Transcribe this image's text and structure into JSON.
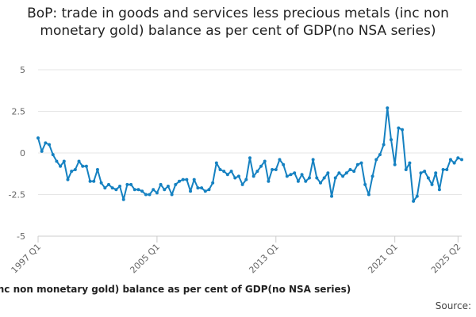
{
  "chart_data": {
    "type": "line",
    "title": "BoP: trade in goods and services less precious metals (inc non monetary gold) balance as per cent of GDP(no NSA series)",
    "xlabel": "BoP: trade in goods and services less precious metals (inc non monetary gold) balance as per cent of GDP(no NSA series)",
    "ylabel": "",
    "source_label": "Source:",
    "ylim": [
      -5,
      5
    ],
    "yticks": [
      5,
      2.5,
      0,
      -2.5,
      -5
    ],
    "ytick_labels": [
      "5",
      "2.5",
      "0",
      "-2.5",
      "-5"
    ],
    "xtick_labels": [
      "1997 Q1",
      "2005 Q1",
      "2013 Q1",
      "2021 Q1",
      "2025 Q2"
    ],
    "xtick_index": [
      0,
      32,
      64,
      96,
      113
    ],
    "grid": true,
    "series": [
      {
        "name": "Balance as per cent of GDP",
        "color": "#1581c1",
        "start": "1997 Q1",
        "values": [
          0.9,
          0.1,
          0.6,
          0.5,
          -0.1,
          -0.5,
          -0.8,
          -0.5,
          -1.6,
          -1.1,
          -1.0,
          -0.5,
          -0.8,
          -0.8,
          -1.7,
          -1.7,
          -1.0,
          -1.8,
          -2.1,
          -1.9,
          -2.1,
          -2.2,
          -2.0,
          -2.8,
          -1.9,
          -1.9,
          -2.2,
          -2.2,
          -2.3,
          -2.5,
          -2.5,
          -2.2,
          -2.4,
          -1.9,
          -2.2,
          -2.0,
          -2.5,
          -1.9,
          -1.7,
          -1.6,
          -1.6,
          -2.3,
          -1.6,
          -2.1,
          -2.1,
          -2.3,
          -2.2,
          -1.8,
          -0.6,
          -1.0,
          -1.1,
          -1.3,
          -1.1,
          -1.5,
          -1.4,
          -1.9,
          -1.6,
          -0.3,
          -1.4,
          -1.1,
          -0.8,
          -0.5,
          -1.7,
          -1.0,
          -1.0,
          -0.4,
          -0.7,
          -1.4,
          -1.3,
          -1.2,
          -1.7,
          -1.3,
          -1.7,
          -1.5,
          -0.4,
          -1.5,
          -1.8,
          -1.5,
          -1.2,
          -2.6,
          -1.5,
          -1.2,
          -1.4,
          -1.2,
          -1.0,
          -1.1,
          -0.7,
          -0.6,
          -1.9,
          -2.5,
          -1.4,
          -0.4,
          -0.1,
          0.5,
          2.7,
          0.8,
          -0.7,
          1.5,
          1.4,
          -1.0,
          -0.6,
          -2.9,
          -2.6,
          -1.2,
          -1.1,
          -1.5,
          -1.9,
          -1.2,
          -2.2,
          -1.0,
          -1.0,
          -0.4,
          -0.6,
          -0.3,
          -0.4
        ]
      }
    ]
  }
}
